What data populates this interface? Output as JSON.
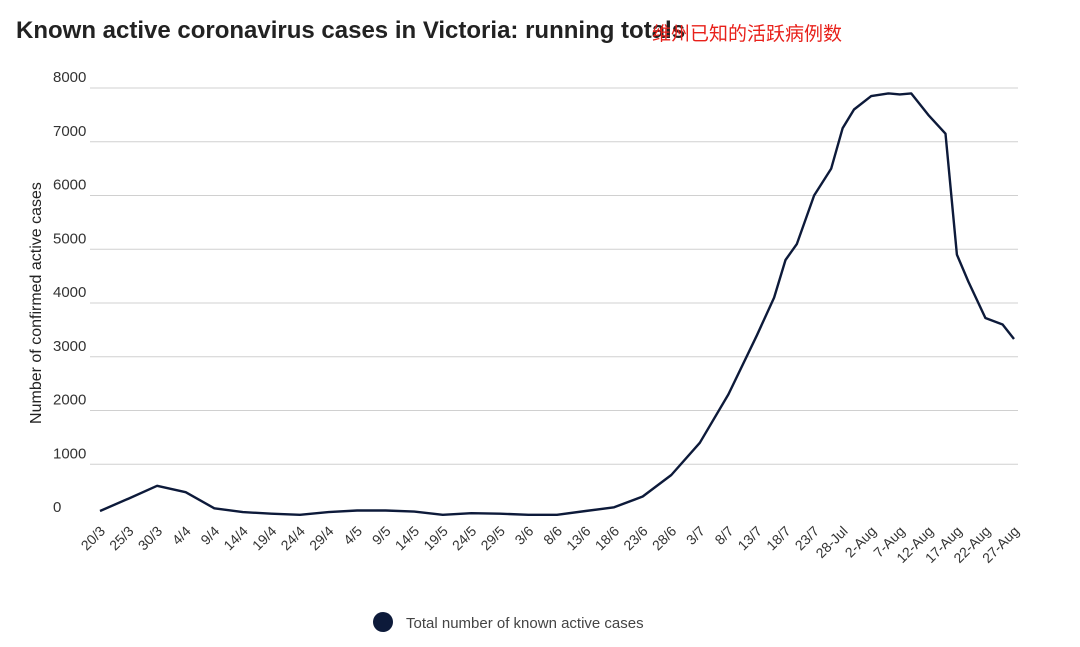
{
  "chart_data": {
    "type": "line",
    "title": "Known active coronavirus cases in Victoria: running totals",
    "subtitle": "维州已知的活跃病例数",
    "ylabel": "Number of confirmed active cases",
    "xlabel": "",
    "ylim": [
      0,
      8000
    ],
    "yticks": [
      0,
      1000,
      2000,
      3000,
      4000,
      5000,
      6000,
      7000,
      8000
    ],
    "grid": true,
    "legend_position": "bottom",
    "x_labels": [
      "20/3",
      "25/3",
      "30/3",
      "4/4",
      "9/4",
      "14/4",
      "19/4",
      "24/4",
      "29/4",
      "4/5",
      "9/5",
      "14/5",
      "19/5",
      "24/5",
      "29/5",
      "3/6",
      "8/6",
      "13/6",
      "18/6",
      "23/6",
      "28/6",
      "3/7",
      "8/7",
      "13/7",
      "18/7",
      "23/7",
      "28-Jul",
      "2-Aug",
      "7-Aug",
      "12-Aug",
      "17-Aug",
      "22-Aug",
      "27-Aug"
    ],
    "colors": {
      "series": "#0d1a3a",
      "grid": "#d0d0d0"
    },
    "series": [
      {
        "name": "Total number of known active cases",
        "x": [
          0,
          5,
          10,
          15,
          20,
          25,
          30,
          35,
          40,
          45,
          50,
          55,
          60,
          65,
          70,
          75,
          80,
          85,
          90,
          95,
          100,
          105,
          110,
          115,
          118,
          120,
          122,
          125,
          128,
          130,
          132,
          135,
          138,
          140,
          142,
          145,
          148,
          150,
          152,
          155,
          158,
          160
        ],
        "values": [
          130,
          360,
          600,
          480,
          180,
          110,
          80,
          60,
          110,
          140,
          140,
          120,
          60,
          90,
          80,
          60,
          60,
          130,
          200,
          400,
          800,
          1400,
          2300,
          3400,
          4100,
          4800,
          5100,
          6000,
          6500,
          7250,
          7600,
          7850,
          7900,
          7880,
          7900,
          7500,
          7150,
          4900,
          4400,
          3720,
          3600,
          3330
        ]
      }
    ]
  }
}
